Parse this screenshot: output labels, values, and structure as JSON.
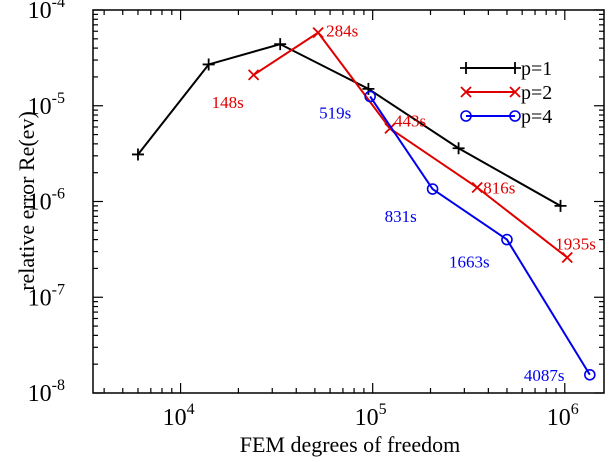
{
  "chart_data": {
    "type": "line",
    "title": "",
    "xlabel": "FEM degrees of freedom",
    "ylabel": "relative error Re(ev)",
    "x_scale": "log",
    "y_scale": "log",
    "xlim": [
      3500,
      1600000
    ],
    "ylim": [
      1e-08,
      0.0001
    ],
    "grid": false,
    "legend_position": "top-right",
    "x_ticks": [
      {
        "value": 10000,
        "base": "10",
        "exp": "4"
      },
      {
        "value": 100000,
        "base": "10",
        "exp": "5"
      },
      {
        "value": 1000000,
        "base": "10",
        "exp": "6"
      }
    ],
    "y_ticks": [
      {
        "value": 1e-08,
        "base": "10",
        "exp": "-8"
      },
      {
        "value": 1e-07,
        "base": "10",
        "exp": "-7"
      },
      {
        "value": 1e-06,
        "base": "10",
        "exp": "-6"
      },
      {
        "value": 1e-05,
        "base": "10",
        "exp": "-5"
      },
      {
        "value": 0.0001,
        "base": "10",
        "exp": "-4"
      }
    ],
    "series": [
      {
        "name": "p=1",
        "color": "#000000",
        "marker": "plus",
        "points": [
          {
            "x": 6000,
            "y": 3.1e-06
          },
          {
            "x": 14000,
            "y": 2.7e-05
          },
          {
            "x": 33000,
            "y": 4.4e-05
          },
          {
            "x": 95000,
            "y": 1.5e-05
          },
          {
            "x": 280000,
            "y": 3.6e-06
          },
          {
            "x": 950000,
            "y": 9e-07
          }
        ]
      },
      {
        "name": "p=2",
        "color": "#e00000",
        "marker": "x",
        "points": [
          {
            "x": 24000,
            "y": 2.1e-05,
            "label": "148s"
          },
          {
            "x": 52000,
            "y": 5.8e-05,
            "label": "284s"
          },
          {
            "x": 123000,
            "y": 5.8e-06,
            "label": "443s"
          },
          {
            "x": 350000,
            "y": 1.4e-06,
            "label": "816s"
          },
          {
            "x": 1030000,
            "y": 2.6e-07,
            "label": "1935s"
          }
        ]
      },
      {
        "name": "p=4",
        "color": "#0000ee",
        "marker": "circle",
        "points": [
          {
            "x": 97000,
            "y": 1.25e-05,
            "label": "519s"
          },
          {
            "x": 205000,
            "y": 1.35e-06,
            "label": "831s"
          },
          {
            "x": 500000,
            "y": 4e-07,
            "label": "1663s"
          },
          {
            "x": 1350000,
            "y": 1.55e-08,
            "label": "4087s"
          }
        ]
      }
    ]
  }
}
